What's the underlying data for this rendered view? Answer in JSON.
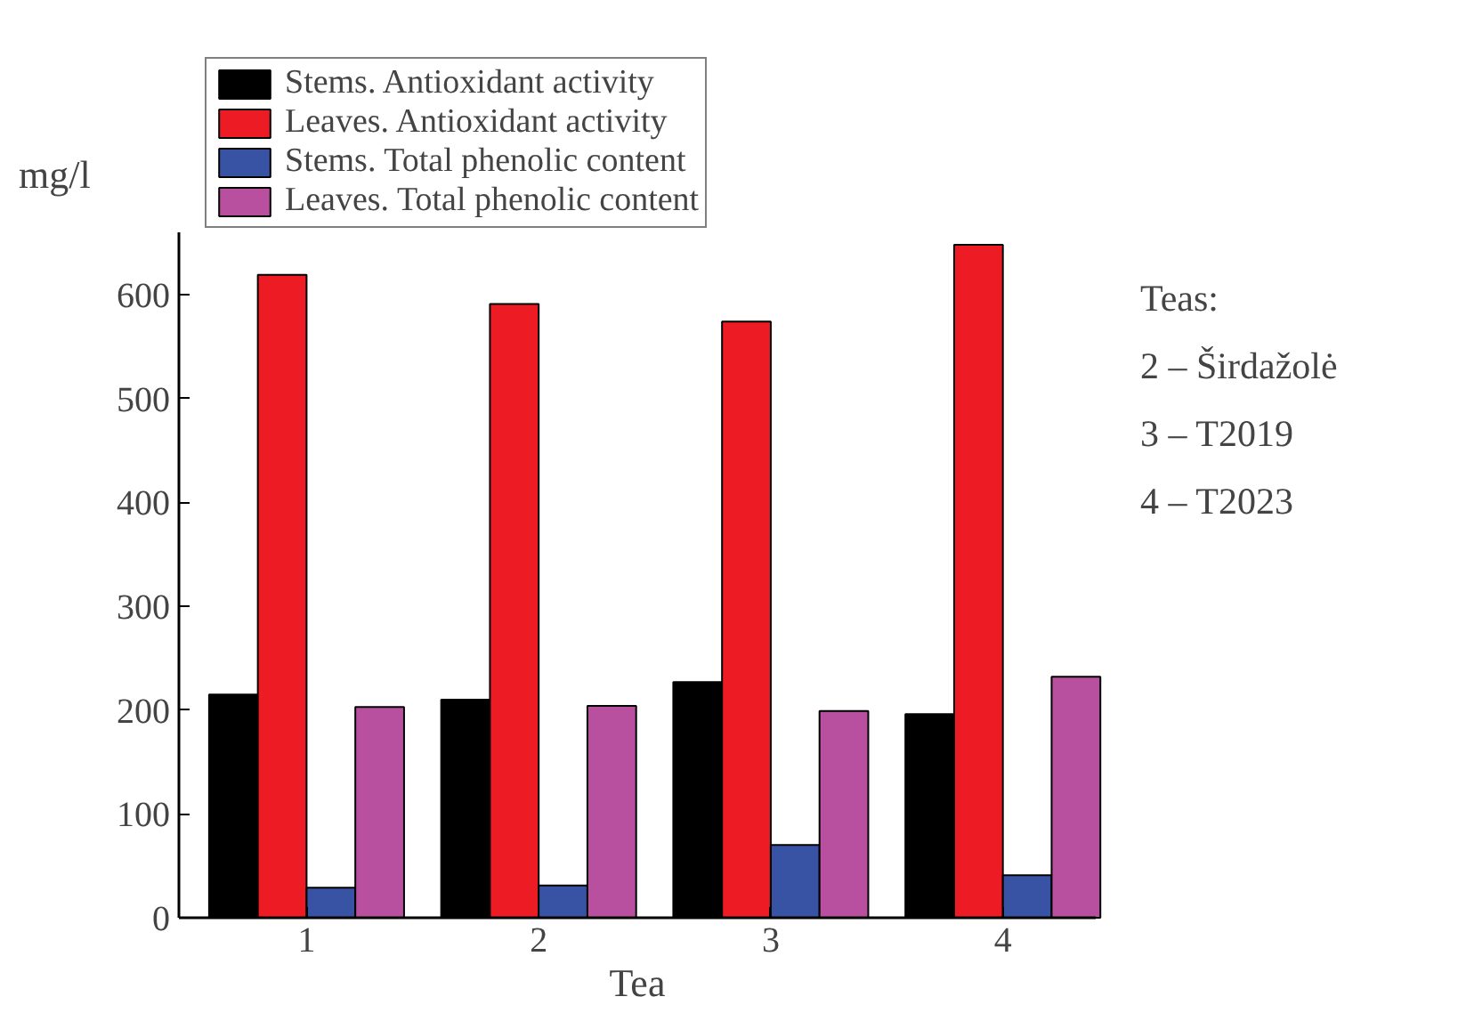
{
  "chart_data": {
    "type": "bar",
    "xlabel": "Tea",
    "ylabel": "mg/l",
    "categories": [
      "1",
      "2",
      "3",
      "4"
    ],
    "series": [
      {
        "name": "Stems. Antioxidant activity",
        "color": "#000000",
        "values": [
          215,
          210,
          227,
          196
        ]
      },
      {
        "name": "Leaves. Antioxidant activity",
        "color": "#ed1c24",
        "values": [
          619,
          591,
          574,
          648
        ]
      },
      {
        "name": "Stems. Total phenolic content",
        "color": "#3953a4",
        "values": [
          29,
          31,
          70,
          41
        ]
      },
      {
        "name": "Leaves. Total phenolic content",
        "color": "#b84f9f",
        "values": [
          203,
          204,
          199,
          232
        ]
      }
    ],
    "ylim": [
      0,
      660
    ],
    "yticks": [
      0,
      100,
      200,
      300,
      400,
      500,
      600
    ],
    "grid": false,
    "legend": "top left",
    "annotations": [
      "Teas:",
      "2 – Širdažolė",
      "3 – T2019",
      "4 – T2023"
    ]
  }
}
